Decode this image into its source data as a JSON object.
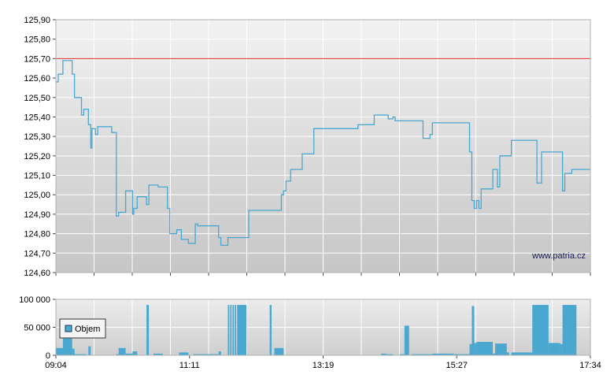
{
  "chart_data": [
    {
      "type": "line",
      "title": "",
      "xlabel": "",
      "ylabel": "",
      "ylim": [
        124.6,
        125.9
      ],
      "y_ticks": [
        "125,90",
        "125,80",
        "125,70",
        "125,60",
        "125,50",
        "125,40",
        "125,30",
        "125,20",
        "125,10",
        "125,00",
        "124,90",
        "124,80",
        "124,70",
        "124,60"
      ],
      "reference_line": {
        "value": 125.7,
        "color": "#e0301e"
      },
      "grid": true,
      "series": [
        {
          "color": "#4aa8d0",
          "points": [
            [
              0,
              125.58
            ],
            [
              1,
              125.58
            ],
            [
              1,
              125.62
            ],
            [
              3,
              125.62
            ],
            [
              3,
              125.69
            ],
            [
              7,
              125.69
            ],
            [
              7,
              125.62
            ],
            [
              8,
              125.62
            ],
            [
              8,
              125.5
            ],
            [
              11,
              125.5
            ],
            [
              11,
              125.41
            ],
            [
              12,
              125.41
            ],
            [
              12,
              125.44
            ],
            [
              14,
              125.44
            ],
            [
              14,
              125.36
            ],
            [
              15,
              125.36
            ],
            [
              15,
              125.24
            ],
            [
              15.5,
              125.24
            ],
            [
              15.5,
              125.34
            ],
            [
              17,
              125.34
            ],
            [
              17,
              125.31
            ],
            [
              18,
              125.31
            ],
            [
              18,
              125.35
            ],
            [
              24,
              125.35
            ],
            [
              24,
              125.32
            ],
            [
              26,
              125.32
            ],
            [
              26,
              124.89
            ],
            [
              27,
              124.89
            ],
            [
              27,
              124.91
            ],
            [
              30,
              124.91
            ],
            [
              30,
              125.02
            ],
            [
              33,
              125.02
            ],
            [
              33,
              124.9
            ],
            [
              33.5,
              124.9
            ],
            [
              33.5,
              124.93
            ],
            [
              35,
              124.93
            ],
            [
              35,
              124.99
            ],
            [
              39,
              124.99
            ],
            [
              39,
              124.95
            ],
            [
              40,
              124.95
            ],
            [
              40,
              125.05
            ],
            [
              44,
              125.05
            ],
            [
              44,
              125.04
            ],
            [
              48,
              125.04
            ],
            [
              48,
              124.93
            ],
            [
              49,
              124.93
            ],
            [
              49,
              124.8
            ],
            [
              52,
              124.8
            ],
            [
              52,
              124.82
            ],
            [
              54,
              124.82
            ],
            [
              54,
              124.77
            ],
            [
              57,
              124.77
            ],
            [
              57,
              124.75
            ],
            [
              60,
              124.75
            ],
            [
              60,
              124.85
            ],
            [
              61,
              124.85
            ],
            [
              61,
              124.84
            ],
            [
              70,
              124.84
            ],
            [
              70,
              124.78
            ],
            [
              71,
              124.78
            ],
            [
              71,
              124.74
            ],
            [
              74,
              124.74
            ],
            [
              74,
              124.78
            ],
            [
              83,
              124.78
            ],
            [
              83,
              124.92
            ],
            [
              97,
              124.92
            ],
            [
              97,
              125.0
            ],
            [
              98,
              125.0
            ],
            [
              98,
              125.02
            ],
            [
              99,
              125.02
            ],
            [
              99,
              125.07
            ],
            [
              101,
              125.07
            ],
            [
              101,
              125.13
            ],
            [
              106,
              125.13
            ],
            [
              106,
              125.21
            ],
            [
              111,
              125.21
            ],
            [
              111,
              125.34
            ],
            [
              130,
              125.34
            ],
            [
              130,
              125.36
            ],
            [
              137,
              125.36
            ],
            [
              137,
              125.41
            ],
            [
              143,
              125.41
            ],
            [
              143,
              125.39
            ],
            [
              145,
              125.39
            ],
            [
              145,
              125.4
            ],
            [
              146,
              125.4
            ],
            [
              146,
              125.38
            ],
            [
              158,
              125.38
            ],
            [
              158,
              125.29
            ],
            [
              161,
              125.29
            ],
            [
              161,
              125.31
            ],
            [
              162,
              125.31
            ],
            [
              162,
              125.37
            ],
            [
              178,
              125.37
            ],
            [
              178,
              125.22
            ],
            [
              179,
              125.22
            ],
            [
              179,
              124.97
            ],
            [
              180,
              124.97
            ],
            [
              180,
              124.93
            ],
            [
              181,
              124.93
            ],
            [
              181,
              124.97
            ],
            [
              182,
              124.97
            ],
            [
              182,
              124.93
            ],
            [
              183,
              124.93
            ],
            [
              183,
              125.03
            ],
            [
              188,
              125.03
            ],
            [
              188,
              125.13
            ],
            [
              190,
              125.13
            ],
            [
              190,
              125.04
            ],
            [
              191,
              125.04
            ],
            [
              191,
              125.2
            ],
            [
              196,
              125.2
            ],
            [
              196,
              125.28
            ],
            [
              207,
              125.28
            ],
            [
              207,
              125.06
            ],
            [
              209,
              125.06
            ],
            [
              209,
              125.22
            ],
            [
              218,
              125.22
            ],
            [
              218,
              125.02
            ],
            [
              219,
              125.02
            ],
            [
              219,
              125.11
            ],
            [
              222,
              125.11
            ],
            [
              222,
              125.13
            ],
            [
              230,
              125.13
            ]
          ]
        }
      ]
    },
    {
      "type": "bar",
      "title": "",
      "ylim": [
        0,
        100000
      ],
      "y_ticks": [
        "100 000",
        "50 000",
        "0"
      ],
      "x_ticks": [
        "09:04",
        "11:11",
        "13:19",
        "15:27",
        "17:34"
      ],
      "legend": {
        "label": "Objem",
        "position": "top-left"
      },
      "color": "#4aa8d0",
      "grid": true,
      "series": [
        {
          "name": "Objem",
          "bars": [
            [
              0,
              3,
              13000
            ],
            [
              3,
              7,
              30000
            ],
            [
              7,
              8,
              12000
            ],
            [
              8,
              13,
              2000
            ],
            [
              14,
              15,
              16000
            ],
            [
              26,
              27,
              2000
            ],
            [
              27,
              30,
              13000
            ],
            [
              30,
              33,
              3000
            ],
            [
              33,
              35,
              7000
            ],
            [
              39,
              40,
              90000
            ],
            [
              42,
              46,
              3000
            ],
            [
              53,
              57,
              5000
            ],
            [
              59,
              70,
              2000
            ],
            [
              70,
              71,
              7000
            ],
            [
              74,
              74.6,
              90000
            ],
            [
              75,
              75.6,
              90000
            ],
            [
              76,
              76.6,
              90000
            ],
            [
              77,
              77.6,
              90000
            ],
            [
              78,
              82,
              90000
            ],
            [
              92,
              92.8,
              90000
            ],
            [
              94,
              98,
              13000
            ],
            [
              140,
              142,
              3000
            ],
            [
              142,
              145,
              2000
            ],
            [
              148,
              150,
              2000
            ],
            [
              150,
              152,
              53000
            ],
            [
              153,
              158,
              2000
            ],
            [
              158,
              161,
              2000
            ],
            [
              161,
              162,
              2000
            ],
            [
              162,
              171,
              3000
            ],
            [
              171,
              178,
              2000
            ],
            [
              178,
              179,
              20000
            ],
            [
              179,
              180,
              88000
            ],
            [
              180,
              181,
              22000
            ],
            [
              181,
              188,
              24000
            ],
            [
              188,
              189,
              3000
            ],
            [
              189,
              194,
              21000
            ],
            [
              194,
              195,
              5000
            ],
            [
              196,
              205,
              5000
            ],
            [
              205,
              212,
              90000
            ],
            [
              212,
              217,
              22000
            ],
            [
              217,
              218,
              20000
            ],
            [
              218,
              224,
              90000
            ]
          ]
        }
      ]
    }
  ],
  "watermark": "www.patria.cz"
}
